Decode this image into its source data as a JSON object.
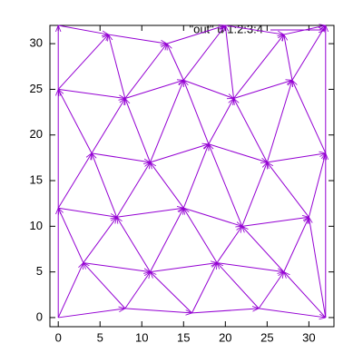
{
  "chart_data": {
    "type": "vector",
    "legend": "\"out\" u 1:2:3:4",
    "color": "#9400d3",
    "xlim": [
      -1,
      33
    ],
    "ylim": [
      -1,
      32
    ],
    "xticks": [
      0,
      5,
      10,
      15,
      20,
      25,
      30
    ],
    "yticks": [
      0,
      5,
      10,
      15,
      20,
      25,
      30
    ],
    "x": [
      0,
      8,
      16,
      24,
      0,
      8,
      8,
      16,
      16,
      24,
      24,
      32,
      3,
      11,
      19,
      27,
      32,
      3,
      3,
      11,
      11,
      19,
      19,
      27,
      0,
      7,
      15,
      22,
      0,
      7,
      7,
      15,
      15,
      22,
      22,
      30,
      30,
      4,
      11,
      18,
      25,
      4,
      4,
      11,
      11,
      18,
      18,
      25,
      25,
      32,
      0,
      8,
      15,
      21,
      0,
      8,
      8,
      15,
      15,
      21,
      21,
      28,
      28,
      0,
      6,
      13,
      20,
      27,
      0,
      0,
      0,
      32,
      32
    ],
    "y": [
      0,
      1,
      0.5,
      1,
      0,
      1,
      1,
      0.5,
      0.5,
      1,
      1,
      0,
      6,
      5,
      6,
      5,
      0,
      6,
      6,
      5,
      5,
      6,
      6,
      5,
      12,
      11,
      12,
      10,
      12,
      11,
      11,
      12,
      12,
      10,
      10,
      11,
      11,
      18,
      17,
      19,
      17,
      18,
      18,
      17,
      17,
      19,
      19,
      17,
      17,
      18,
      25,
      24,
      26,
      24,
      25,
      24,
      24,
      26,
      26,
      24,
      24,
      26,
      26,
      32,
      31,
      30,
      32,
      31,
      0,
      12,
      25,
      0,
      18
    ],
    "dx": [
      8,
      8,
      8,
      8,
      3,
      -5,
      3,
      -5,
      3,
      -5,
      3,
      -5,
      8,
      8,
      8,
      3,
      -2,
      -3,
      4,
      -4,
      4,
      -4,
      3,
      -5,
      7,
      8,
      7,
      8,
      4,
      -3,
      4,
      -4,
      3,
      -4,
      3,
      -5,
      2,
      7,
      7,
      7,
      7,
      -4,
      4,
      -3,
      4,
      -3,
      3,
      -4,
      3,
      -4,
      8,
      7,
      6,
      7,
      6,
      -2,
      5,
      -2,
      5,
      -1,
      6,
      -1,
      4,
      6,
      7,
      7,
      7,
      5,
      0,
      0,
      0,
      0,
      0
    ],
    "dy": [
      1,
      -0.5,
      0.5,
      -1,
      6,
      5,
      4,
      4.5,
      5.5,
      5,
      4,
      5,
      -1,
      1,
      -1,
      6,
      11,
      6,
      5,
      6,
      7,
      6,
      4,
      5,
      -1,
      1,
      -2,
      1,
      6,
      7,
      6,
      5,
      7,
      9,
      7,
      6,
      7,
      -1,
      2,
      -2,
      1,
      7,
      6,
      7,
      9,
      7,
      5,
      7,
      9,
      8,
      -1,
      2,
      -2,
      2,
      6,
      7,
      6,
      4,
      6,
      8,
      7,
      5,
      6,
      -1,
      -1,
      2,
      -1,
      1,
      12,
      13,
      7,
      18,
      14
    ]
  }
}
